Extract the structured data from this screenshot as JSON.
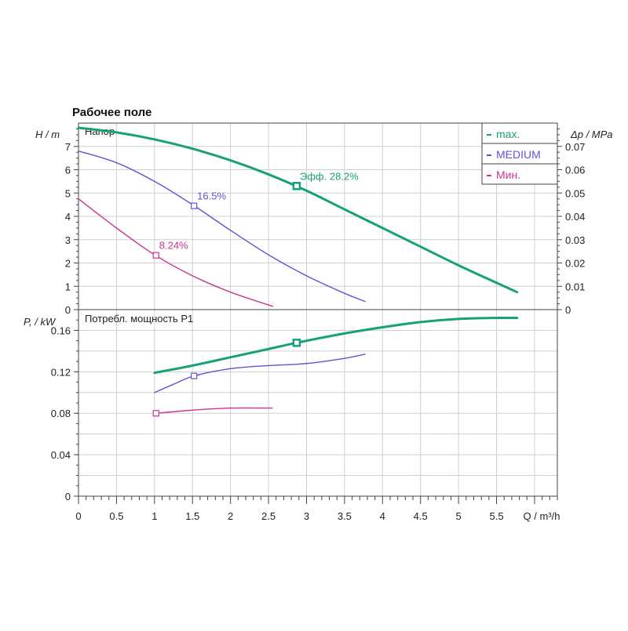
{
  "chart_data": [
    {
      "type": "line",
      "title": "Рабочее поле",
      "panel_label": "Напор",
      "ylabel": "H / m",
      "ylabel_right": "Δp / MPa",
      "xlabel": "Q / m³/h",
      "xlim": [
        0,
        6.3
      ],
      "ylim": [
        0,
        8
      ],
      "ylim_right": [
        0,
        0.08
      ],
      "x_ticks": [
        "0",
        "0.5",
        "1",
        "1.5",
        "2",
        "2.5",
        "3",
        "3.5",
        "4",
        "4.5",
        "5",
        "5.5"
      ],
      "y_ticks": [
        "0",
        "1",
        "2",
        "3",
        "4",
        "5",
        "6",
        "7"
      ],
      "y_ticks_right": [
        "0",
        "0.01",
        "0.02",
        "0.03",
        "0.04",
        "0.05",
        "0.06",
        "0.07"
      ],
      "grid": true,
      "legend_position": "top-right",
      "series": [
        {
          "name": "max.",
          "color": "#17a07a",
          "width": 3,
          "x": [
            0,
            0.5,
            1,
            1.5,
            2,
            2.5,
            3,
            3.5,
            4,
            4.5,
            5,
            5.5,
            5.77
          ],
          "y": [
            7.8,
            7.6,
            7.3,
            6.9,
            6.4,
            5.8,
            5.1,
            4.3,
            3.5,
            2.7,
            1.9,
            1.15,
            0.75
          ],
          "marker": {
            "x": 2.87,
            "y": 5.3,
            "label": "Эфф.  28.2%"
          }
        },
        {
          "name": "MEDIUM",
          "color": "#6a4fd6",
          "width": 1.4,
          "x": [
            0,
            0.5,
            1,
            1.5,
            2,
            2.5,
            3,
            3.5,
            3.77
          ],
          "y": [
            6.8,
            6.3,
            5.5,
            4.5,
            3.4,
            2.35,
            1.45,
            0.7,
            0.35
          ],
          "marker": {
            "x": 1.52,
            "y": 4.45,
            "label": "16.5%"
          }
        },
        {
          "name": "Мин.",
          "color": "#cc3390",
          "width": 1.4,
          "x": [
            0,
            0.5,
            1,
            1.5,
            2,
            2.5,
            2.55
          ],
          "y": [
            4.75,
            3.5,
            2.35,
            1.45,
            0.75,
            0.2,
            0.15
          ],
          "marker": {
            "x": 1.02,
            "y": 2.33,
            "label": "8.24%"
          }
        }
      ]
    },
    {
      "type": "line",
      "panel_label": "Потребл. мощность P1",
      "ylabel": "P, / kW",
      "xlabel": "Q / m³/h",
      "xlim": [
        0,
        6.3
      ],
      "ylim": [
        0,
        0.18
      ],
      "y_ticks": [
        "0",
        "0.04",
        "0.08",
        "0.12",
        "0.16"
      ],
      "grid": true,
      "series": [
        {
          "name": "max.",
          "color": "#17a07a",
          "width": 3,
          "x": [
            1,
            1.5,
            2,
            2.5,
            2.87,
            3.5,
            4,
            4.5,
            5,
            5.5,
            5.77
          ],
          "y": [
            0.119,
            0.126,
            0.134,
            0.142,
            0.148,
            0.157,
            0.163,
            0.168,
            0.171,
            0.172,
            0.172
          ],
          "marker": {
            "x": 2.87,
            "y": 0.148
          }
        },
        {
          "name": "MEDIUM",
          "color": "#6a4fd6",
          "width": 1.4,
          "x": [
            1,
            1.25,
            1.52,
            2,
            2.5,
            3,
            3.5,
            3.77
          ],
          "y": [
            0.1,
            0.108,
            0.116,
            0.123,
            0.126,
            0.128,
            0.133,
            0.137
          ],
          "marker": {
            "x": 1.52,
            "y": 0.116
          }
        },
        {
          "name": "Мин.",
          "color": "#cc3390",
          "width": 1.4,
          "x": [
            1.02,
            1.5,
            2,
            2.55
          ],
          "y": [
            0.08,
            0.083,
            0.085,
            0.085
          ],
          "marker": {
            "x": 1.02,
            "y": 0.08
          }
        }
      ]
    }
  ]
}
